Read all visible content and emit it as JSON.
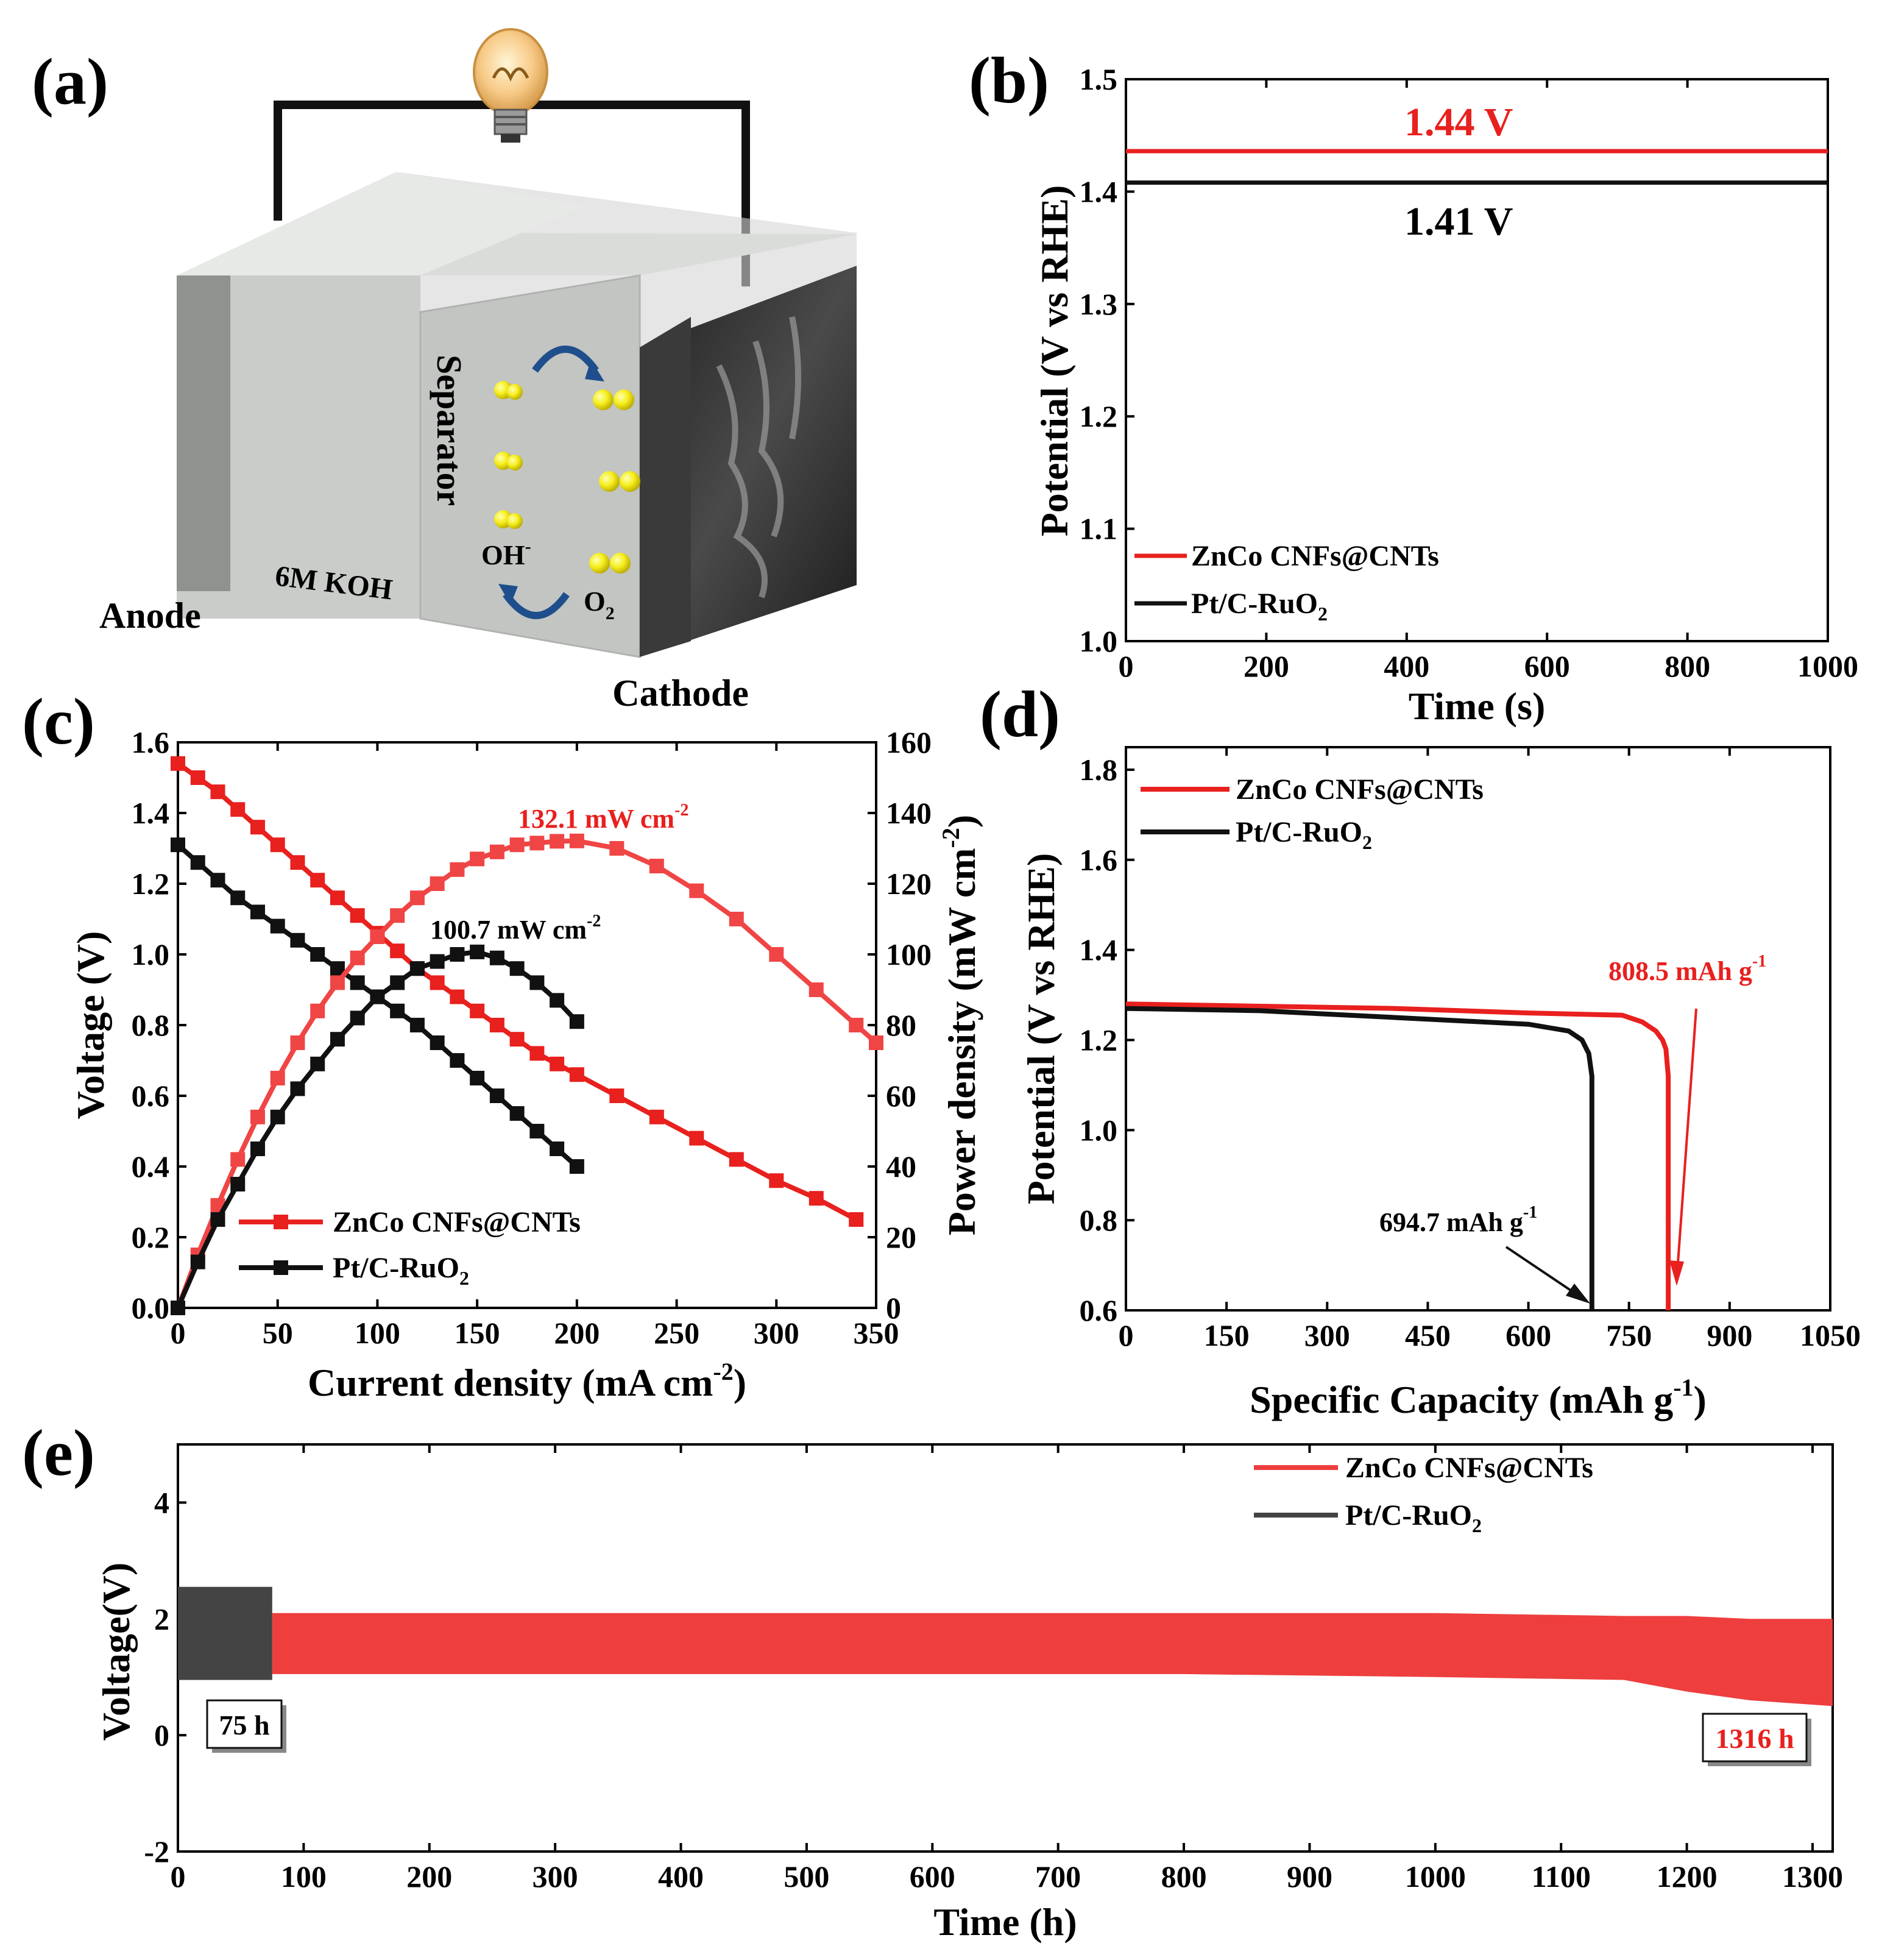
{
  "figure": {
    "panel_labels": [
      "(a)",
      "(b)",
      "(c)",
      "(d)",
      "(e)"
    ]
  },
  "colors": {
    "red": "#e8201e",
    "red_light": "#f04545",
    "black": "#111111",
    "gray_dark": "#444444",
    "box_face": "#d8dbd8",
    "box_side": "#a7aaa7",
    "ball_yellow": "#f5ee1e"
  },
  "schematic": {
    "anode": "Anode",
    "cathode": "Cathode",
    "separator": "Separator",
    "electrolyte": "6M KOH",
    "oh_label": "OH",
    "oh_sup": "-",
    "o2_label": "O",
    "o2_sub": "2",
    "bulb_icon": "lightbulb-icon"
  },
  "chart_data": [
    {
      "panel": "(b)",
      "type": "line",
      "xlabel": "Time (s)",
      "ylabel": "Potential (V vs RHE)",
      "xlim": [
        0,
        1000
      ],
      "ylim": [
        1.0,
        1.5
      ],
      "xticks": [
        0,
        200,
        400,
        600,
        800,
        1000
      ],
      "yticks": [
        1.0,
        1.1,
        1.2,
        1.3,
        1.4,
        1.5
      ],
      "series": [
        {
          "name": "ZnCo CNFs@CNTs",
          "color": "#e8201e",
          "x": [
            0,
            1000
          ],
          "y": [
            1.436,
            1.436
          ],
          "label": "1.44 V"
        },
        {
          "name": "Pt/C-RuO",
          "name_sub": "2",
          "color": "#111111",
          "x": [
            0,
            1000
          ],
          "y": [
            1.408,
            1.408
          ],
          "label": "1.41 V"
        }
      ],
      "legend": "bottom-left"
    },
    {
      "panel": "(c)",
      "type": "line",
      "xlabel": "Current density (mA cm",
      "xlabel_sup": "-2",
      "xlabel_end": ")",
      "ylabel": "Voltage (V)",
      "y2label": "Power density (mW cm",
      "y2label_sup": "-2",
      "y2label_end": ")",
      "xlim": [
        0,
        350
      ],
      "ylim": [
        0.0,
        1.6
      ],
      "y2lim": [
        0,
        160
      ],
      "xticks": [
        0,
        50,
        100,
        150,
        200,
        250,
        300,
        350
      ],
      "yticks": [
        0.0,
        0.2,
        0.4,
        0.6,
        0.8,
        1.0,
        1.2,
        1.4,
        1.6
      ],
      "y2ticks": [
        0,
        20,
        40,
        60,
        80,
        100,
        120,
        140,
        160
      ],
      "series": [
        {
          "name": "ZnCo CNFs@CNTs",
          "kind": "voltage",
          "color": "#e8201e",
          "x": [
            0,
            10,
            20,
            30,
            40,
            50,
            60,
            70,
            80,
            90,
            100,
            110,
            120,
            130,
            140,
            150,
            160,
            170,
            180,
            190,
            200,
            220,
            240,
            260,
            280,
            300,
            320,
            340
          ],
          "y": [
            1.54,
            1.5,
            1.46,
            1.41,
            1.36,
            1.31,
            1.26,
            1.21,
            1.16,
            1.11,
            1.06,
            1.01,
            0.96,
            0.92,
            0.88,
            0.84,
            0.8,
            0.76,
            0.72,
            0.69,
            0.66,
            0.6,
            0.54,
            0.48,
            0.42,
            0.36,
            0.31,
            0.25
          ]
        },
        {
          "name": "Pt/C-RuO",
          "name_sub": "2",
          "kind": "voltage",
          "color": "#111111",
          "x": [
            0,
            10,
            20,
            30,
            40,
            50,
            60,
            70,
            80,
            90,
            100,
            110,
            120,
            130,
            140,
            150,
            160,
            170,
            180,
            190,
            200
          ],
          "y": [
            1.31,
            1.26,
            1.21,
            1.16,
            1.12,
            1.08,
            1.04,
            1.0,
            0.96,
            0.92,
            0.88,
            0.84,
            0.8,
            0.75,
            0.7,
            0.65,
            0.6,
            0.55,
            0.5,
            0.45,
            0.4
          ]
        },
        {
          "name": "ZnCo CNFs@CNTs power",
          "kind": "power",
          "color": "#f04545",
          "x": [
            0,
            10,
            20,
            30,
            40,
            50,
            60,
            70,
            80,
            90,
            100,
            110,
            120,
            130,
            140,
            150,
            160,
            170,
            180,
            190,
            200,
            220,
            240,
            260,
            280,
            300,
            320,
            340,
            350
          ],
          "y": [
            0,
            15,
            29,
            42,
            54,
            65,
            75,
            84,
            92,
            99,
            105,
            111,
            116,
            120,
            124,
            127,
            129,
            131,
            131.5,
            132,
            132.1,
            130,
            125,
            118,
            110,
            100,
            90,
            80,
            75
          ]
        },
        {
          "name": "Pt/C-RuO power",
          "kind": "power",
          "color": "#111111",
          "x": [
            0,
            10,
            20,
            30,
            40,
            50,
            60,
            70,
            80,
            90,
            100,
            110,
            120,
            130,
            140,
            150,
            160,
            170,
            180,
            190,
            200
          ],
          "y": [
            0,
            13,
            25,
            35,
            45,
            54,
            62,
            69,
            76,
            82,
            88,
            92,
            96,
            98,
            100,
            100.7,
            99,
            96,
            92,
            87,
            81
          ]
        }
      ],
      "annotations": [
        {
          "text": "132.1 mW cm",
          "sup": "-2",
          "color": "#e8201e"
        },
        {
          "text": "100.7 mW cm",
          "sup": "-2",
          "color": "#111111"
        }
      ],
      "legend": "bottom-left"
    },
    {
      "panel": "(d)",
      "type": "line",
      "xlabel": "Specific Capacity (mAh g",
      "xlabel_sup": "-1",
      "xlabel_end": ")",
      "ylabel": "Potential (V vs RHE)",
      "xlim": [
        0,
        1050
      ],
      "ylim": [
        0.6,
        1.85
      ],
      "xticks": [
        0,
        150,
        300,
        450,
        600,
        750,
        900,
        1050
      ],
      "yticks": [
        0.6,
        0.8,
        1.0,
        1.2,
        1.4,
        1.6,
        1.8
      ],
      "series": [
        {
          "name": "ZnCo CNFs@CNTs",
          "color": "#e8201e",
          "x": [
            0,
            200,
            400,
            600,
            740,
            770,
            790,
            800,
            805,
            808.5,
            808.5
          ],
          "y": [
            1.28,
            1.275,
            1.27,
            1.26,
            1.255,
            1.24,
            1.22,
            1.2,
            1.18,
            1.12,
            0.6
          ]
        },
        {
          "name": "Pt/C-RuO",
          "name_sub": "2",
          "color": "#111111",
          "x": [
            0,
            200,
            400,
            600,
            660,
            680,
            690,
            694.7,
            694.7
          ],
          "y": [
            1.27,
            1.265,
            1.25,
            1.235,
            1.22,
            1.2,
            1.17,
            1.12,
            0.6
          ]
        }
      ],
      "annotations": [
        {
          "text": "808.5 mAh g",
          "sup": "-1",
          "color": "#e8201e"
        },
        {
          "text": "694.7 mAh g",
          "sup": "-1",
          "color": "#111111"
        }
      ],
      "legend": "top-left"
    },
    {
      "panel": "(e)",
      "type": "area",
      "xlabel": "Time (h)",
      "ylabel": "Voltage(V)",
      "xlim": [
        0,
        1316
      ],
      "ylim": [
        -2,
        5
      ],
      "xticks": [
        0,
        100,
        200,
        300,
        400,
        500,
        600,
        700,
        800,
        900,
        1000,
        1100,
        1200,
        1300
      ],
      "yticks": [
        -2,
        0,
        2,
        4
      ],
      "series": [
        {
          "name": "ZnCo CNFs@CNTs",
          "color": "#ee3e3e",
          "x": [
            75,
            200,
            400,
            600,
            800,
            1000,
            1150,
            1200,
            1250,
            1316
          ],
          "upper": [
            2.1,
            2.1,
            2.1,
            2.1,
            2.1,
            2.1,
            2.05,
            2.05,
            2.0,
            2.0
          ],
          "lower": [
            1.05,
            1.05,
            1.05,
            1.05,
            1.05,
            1.0,
            0.95,
            0.75,
            0.6,
            0.5
          ]
        },
        {
          "name": "Pt/C-RuO",
          "name_sub": "2",
          "color": "#444444",
          "x": [
            0,
            75
          ],
          "upper": [
            2.55,
            2.55
          ],
          "lower": [
            0.95,
            0.95
          ]
        }
      ],
      "annotations": [
        {
          "text": "75 h",
          "color": "#111111"
        },
        {
          "text": "1316 h",
          "color": "#e8201e"
        }
      ],
      "legend": "top-right"
    }
  ]
}
